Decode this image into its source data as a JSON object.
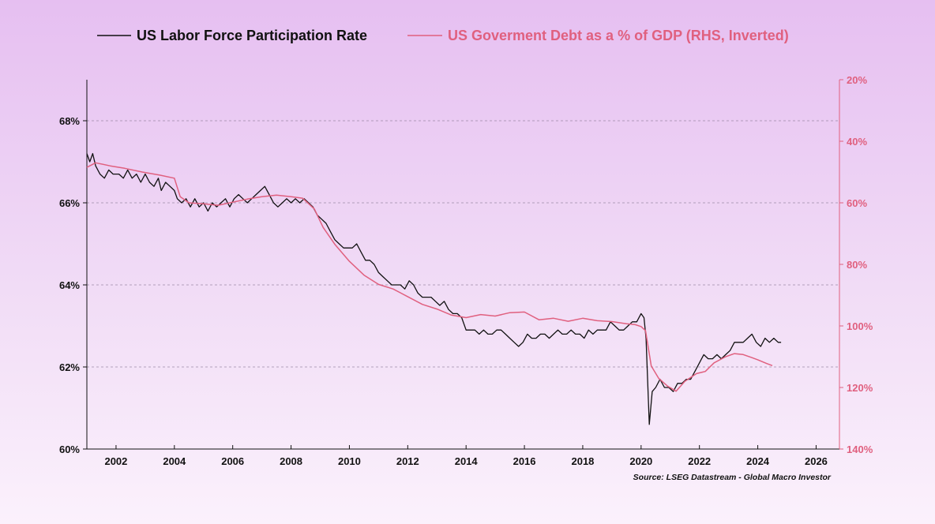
{
  "chart_data": {
    "type": "line",
    "legend": {
      "placement": "top-center",
      "entries": [
        {
          "name": "US Labor Force Participation Rate",
          "color": "#111111"
        },
        {
          "name": "US Goverment Debt as a % of GDP (RHS, Inverted)",
          "color": "#e0607f"
        }
      ]
    },
    "source": "Source: LSEG Datastream - Global Macro Investor",
    "x_axis": {
      "range": [
        2001.0,
        2026.8
      ],
      "ticks": [
        2002,
        2004,
        2006,
        2008,
        2010,
        2012,
        2014,
        2016,
        2018,
        2020,
        2022,
        2024,
        2026
      ],
      "tick_labels": [
        "2002",
        "2004",
        "2006",
        "2008",
        "2010",
        "2012",
        "2014",
        "2016",
        "2018",
        "2020",
        "2022",
        "2024",
        "2026"
      ]
    },
    "y_left": {
      "range": [
        60,
        69
      ],
      "ticks": [
        60,
        62,
        64,
        66,
        68
      ],
      "tick_labels": [
        "60%",
        "62%",
        "64%",
        "66%",
        "68%"
      ],
      "grid": true
    },
    "y_right": {
      "range": [
        20,
        140
      ],
      "inverted": true,
      "ticks": [
        20,
        40,
        60,
        80,
        100,
        120,
        140
      ],
      "tick_labels": [
        "20%",
        "40%",
        "60%",
        "80%",
        "100%",
        "120%",
        "140%"
      ],
      "color": "#e0607f"
    },
    "series": [
      {
        "name": "US Labor Force Participation Rate",
        "axis": "left",
        "color": "#111111",
        "points": [
          [
            2001.0,
            67.2
          ],
          [
            2001.1,
            67.0
          ],
          [
            2001.2,
            67.2
          ],
          [
            2001.3,
            66.9
          ],
          [
            2001.45,
            66.7
          ],
          [
            2001.6,
            66.6
          ],
          [
            2001.75,
            66.8
          ],
          [
            2001.9,
            66.7
          ],
          [
            2002.1,
            66.7
          ],
          [
            2002.25,
            66.6
          ],
          [
            2002.4,
            66.8
          ],
          [
            2002.55,
            66.6
          ],
          [
            2002.7,
            66.7
          ],
          [
            2002.85,
            66.5
          ],
          [
            2003.0,
            66.7
          ],
          [
            2003.15,
            66.5
          ],
          [
            2003.3,
            66.4
          ],
          [
            2003.45,
            66.6
          ],
          [
            2003.55,
            66.3
          ],
          [
            2003.7,
            66.5
          ],
          [
            2003.85,
            66.4
          ],
          [
            2004.0,
            66.3
          ],
          [
            2004.1,
            66.1
          ],
          [
            2004.25,
            66.0
          ],
          [
            2004.4,
            66.1
          ],
          [
            2004.55,
            65.9
          ],
          [
            2004.7,
            66.1
          ],
          [
            2004.85,
            65.9
          ],
          [
            2005.0,
            66.0
          ],
          [
            2005.15,
            65.8
          ],
          [
            2005.3,
            66.0
          ],
          [
            2005.45,
            65.9
          ],
          [
            2005.6,
            66.0
          ],
          [
            2005.75,
            66.1
          ],
          [
            2005.9,
            65.9
          ],
          [
            2006.05,
            66.1
          ],
          [
            2006.2,
            66.2
          ],
          [
            2006.35,
            66.1
          ],
          [
            2006.5,
            66.0
          ],
          [
            2006.65,
            66.1
          ],
          [
            2006.8,
            66.2
          ],
          [
            2006.95,
            66.3
          ],
          [
            2007.1,
            66.4
          ],
          [
            2007.25,
            66.2
          ],
          [
            2007.4,
            66.0
          ],
          [
            2007.55,
            65.9
          ],
          [
            2007.7,
            66.0
          ],
          [
            2007.85,
            66.1
          ],
          [
            2008.0,
            66.0
          ],
          [
            2008.15,
            66.1
          ],
          [
            2008.3,
            66.0
          ],
          [
            2008.45,
            66.1
          ],
          [
            2008.6,
            66.0
          ],
          [
            2008.75,
            65.9
          ],
          [
            2008.9,
            65.7
          ],
          [
            2009.05,
            65.6
          ],
          [
            2009.2,
            65.5
          ],
          [
            2009.35,
            65.3
          ],
          [
            2009.5,
            65.1
          ],
          [
            2009.65,
            65.0
          ],
          [
            2009.8,
            64.9
          ],
          [
            2009.95,
            64.9
          ],
          [
            2010.1,
            64.9
          ],
          [
            2010.25,
            65.0
          ],
          [
            2010.4,
            64.8
          ],
          [
            2010.55,
            64.6
          ],
          [
            2010.7,
            64.6
          ],
          [
            2010.85,
            64.5
          ],
          [
            2011.0,
            64.3
          ],
          [
            2011.15,
            64.2
          ],
          [
            2011.3,
            64.1
          ],
          [
            2011.45,
            64.0
          ],
          [
            2011.6,
            64.0
          ],
          [
            2011.75,
            64.0
          ],
          [
            2011.9,
            63.9
          ],
          [
            2012.05,
            64.1
          ],
          [
            2012.2,
            64.0
          ],
          [
            2012.35,
            63.8
          ],
          [
            2012.5,
            63.7
          ],
          [
            2012.65,
            63.7
          ],
          [
            2012.8,
            63.7
          ],
          [
            2012.95,
            63.6
          ],
          [
            2013.1,
            63.5
          ],
          [
            2013.25,
            63.6
          ],
          [
            2013.4,
            63.4
          ],
          [
            2013.55,
            63.3
          ],
          [
            2013.7,
            63.3
          ],
          [
            2013.85,
            63.2
          ],
          [
            2014.0,
            62.9
          ],
          [
            2014.15,
            62.9
          ],
          [
            2014.3,
            62.9
          ],
          [
            2014.45,
            62.8
          ],
          [
            2014.6,
            62.9
          ],
          [
            2014.75,
            62.8
          ],
          [
            2014.9,
            62.8
          ],
          [
            2015.05,
            62.9
          ],
          [
            2015.2,
            62.9
          ],
          [
            2015.35,
            62.8
          ],
          [
            2015.5,
            62.7
          ],
          [
            2015.65,
            62.6
          ],
          [
            2015.8,
            62.5
          ],
          [
            2015.95,
            62.6
          ],
          [
            2016.1,
            62.8
          ],
          [
            2016.25,
            62.7
          ],
          [
            2016.4,
            62.7
          ],
          [
            2016.55,
            62.8
          ],
          [
            2016.7,
            62.8
          ],
          [
            2016.85,
            62.7
          ],
          [
            2017.0,
            62.8
          ],
          [
            2017.15,
            62.9
          ],
          [
            2017.3,
            62.8
          ],
          [
            2017.45,
            62.8
          ],
          [
            2017.6,
            62.9
          ],
          [
            2017.75,
            62.8
          ],
          [
            2017.9,
            62.8
          ],
          [
            2018.05,
            62.7
          ],
          [
            2018.2,
            62.9
          ],
          [
            2018.35,
            62.8
          ],
          [
            2018.5,
            62.9
          ],
          [
            2018.65,
            62.9
          ],
          [
            2018.8,
            62.9
          ],
          [
            2018.95,
            63.1
          ],
          [
            2019.1,
            63.0
          ],
          [
            2019.25,
            62.9
          ],
          [
            2019.4,
            62.9
          ],
          [
            2019.55,
            63.0
          ],
          [
            2019.7,
            63.1
          ],
          [
            2019.85,
            63.1
          ],
          [
            2020.0,
            63.3
          ],
          [
            2020.1,
            63.2
          ],
          [
            2020.17,
            62.7
          ],
          [
            2020.28,
            60.6
          ],
          [
            2020.38,
            61.4
          ],
          [
            2020.5,
            61.5
          ],
          [
            2020.65,
            61.7
          ],
          [
            2020.8,
            61.5
          ],
          [
            2020.95,
            61.5
          ],
          [
            2021.1,
            61.4
          ],
          [
            2021.25,
            61.6
          ],
          [
            2021.4,
            61.6
          ],
          [
            2021.55,
            61.7
          ],
          [
            2021.7,
            61.7
          ],
          [
            2021.85,
            61.9
          ],
          [
            2022.0,
            62.1
          ],
          [
            2022.15,
            62.3
          ],
          [
            2022.3,
            62.2
          ],
          [
            2022.45,
            62.2
          ],
          [
            2022.6,
            62.3
          ],
          [
            2022.75,
            62.2
          ],
          [
            2022.9,
            62.3
          ],
          [
            2023.05,
            62.4
          ],
          [
            2023.2,
            62.6
          ],
          [
            2023.35,
            62.6
          ],
          [
            2023.5,
            62.6
          ],
          [
            2023.65,
            62.7
          ],
          [
            2023.8,
            62.8
          ],
          [
            2023.95,
            62.6
          ],
          [
            2024.1,
            62.5
          ],
          [
            2024.25,
            62.7
          ],
          [
            2024.4,
            62.6
          ],
          [
            2024.55,
            62.7
          ],
          [
            2024.7,
            62.6
          ],
          [
            2024.8,
            62.6
          ]
        ]
      },
      {
        "name": "US Goverment Debt as a % of GDP (RHS, Inverted)",
        "axis": "right",
        "color": "#e0607f",
        "points": [
          [
            2001.0,
            48.5
          ],
          [
            2001.3,
            47.0
          ],
          [
            2001.8,
            48.0
          ],
          [
            2002.3,
            48.8
          ],
          [
            2002.9,
            50.0
          ],
          [
            2003.5,
            51.0
          ],
          [
            2004.0,
            52.0
          ],
          [
            2004.2,
            58.0
          ],
          [
            2004.5,
            60.0
          ],
          [
            2005.0,
            60.3
          ],
          [
            2005.5,
            60.8
          ],
          [
            2006.0,
            59.8
          ],
          [
            2006.5,
            58.8
          ],
          [
            2007.0,
            58.0
          ],
          [
            2007.5,
            57.5
          ],
          [
            2008.0,
            58.0
          ],
          [
            2008.4,
            58.5
          ],
          [
            2008.8,
            62.0
          ],
          [
            2009.1,
            68.0
          ],
          [
            2009.5,
            73.5
          ],
          [
            2010.0,
            79.0
          ],
          [
            2010.5,
            83.5
          ],
          [
            2011.0,
            86.5
          ],
          [
            2011.5,
            88.0
          ],
          [
            2012.0,
            90.5
          ],
          [
            2012.5,
            93.0
          ],
          [
            2013.0,
            94.5
          ],
          [
            2013.5,
            96.5
          ],
          [
            2014.0,
            97.3
          ],
          [
            2014.5,
            96.3
          ],
          [
            2015.0,
            96.8
          ],
          [
            2015.5,
            95.7
          ],
          [
            2016.0,
            95.5
          ],
          [
            2016.5,
            98.0
          ],
          [
            2017.0,
            97.5
          ],
          [
            2017.5,
            98.5
          ],
          [
            2018.0,
            97.5
          ],
          [
            2018.5,
            98.3
          ],
          [
            2019.0,
            98.6
          ],
          [
            2019.5,
            99.3
          ],
          [
            2019.8,
            99.6
          ],
          [
            2020.0,
            100.2
          ],
          [
            2020.15,
            101.5
          ],
          [
            2020.35,
            113.0
          ],
          [
            2020.6,
            117.0
          ],
          [
            2020.9,
            119.5
          ],
          [
            2021.2,
            121.2
          ],
          [
            2021.5,
            118.0
          ],
          [
            2021.9,
            115.5
          ],
          [
            2022.2,
            114.8
          ],
          [
            2022.5,
            112.0
          ],
          [
            2022.9,
            110.0
          ],
          [
            2023.2,
            109.0
          ],
          [
            2023.5,
            109.3
          ],
          [
            2023.8,
            110.3
          ],
          [
            2024.0,
            111.0
          ],
          [
            2024.3,
            112.2
          ],
          [
            2024.5,
            112.9
          ]
        ]
      }
    ]
  }
}
